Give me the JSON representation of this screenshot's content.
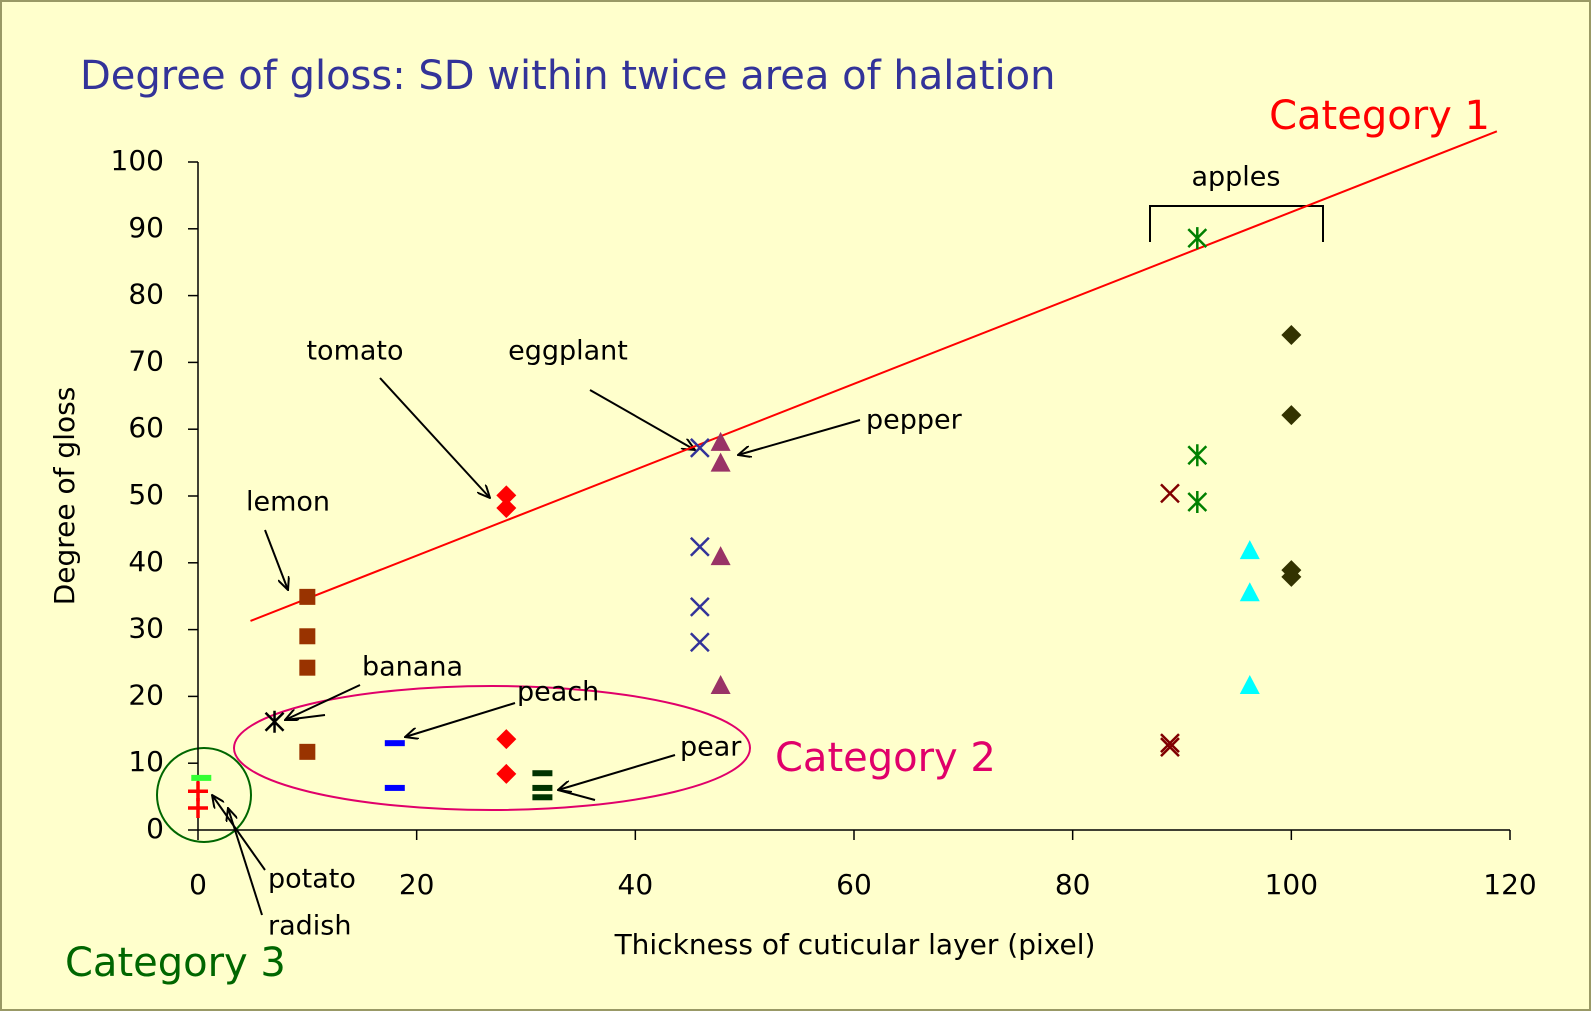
{
  "chart_data": {
    "type": "scatter",
    "subtitle": "Degree of gloss: SD within twice area of halation",
    "x_label": "Thickness of cuticular layer (pixel)",
    "y_label": "Degree of gloss",
    "xlim": [
      0,
      120
    ],
    "xticks": [
      0,
      20,
      40,
      60,
      80,
      100,
      120
    ],
    "ylim": [
      0,
      100
    ],
    "yticks": [
      0,
      10,
      20,
      30,
      40,
      50,
      60,
      70,
      80,
      90,
      100
    ],
    "series": [
      {
        "marker": "square",
        "color": "#993300",
        "x": [
          10,
          10,
          10,
          10
        ],
        "values": [
          34.9,
          29,
          24.3,
          11.7
        ]
      },
      {
        "marker": "asterisk",
        "color": "#000000",
        "x": [
          7
        ],
        "values": [
          16.2
        ]
      },
      {
        "marker": "dash",
        "color": "#0000ff",
        "x": [
          18,
          18
        ],
        "values": [
          13,
          6.3
        ]
      },
      {
        "marker": "diamond",
        "color": "#ff0000",
        "x": [
          28.2,
          28.2,
          28.2,
          28.2
        ],
        "values": [
          50.1,
          48.2,
          13.6,
          8.4
        ]
      },
      {
        "marker": "dash",
        "color": "#003300",
        "x": [
          31.5,
          31.5,
          31.5
        ],
        "values": [
          8.5,
          6.3,
          4.9
        ]
      },
      {
        "marker": "x",
        "color": "#333399",
        "x": [
          45.9,
          45.9,
          45.9,
          45.9
        ],
        "values": [
          57.2,
          42.4,
          33.4,
          28.1
        ]
      },
      {
        "marker": "triangle",
        "color": "#993366",
        "x": [
          47.8,
          47.8,
          47.8,
          47.8
        ],
        "values": [
          58.1,
          55,
          41,
          21.7
        ]
      },
      {
        "marker": "dash",
        "color": "#33ff33",
        "x": [
          0.3
        ],
        "values": [
          7.8
        ]
      },
      {
        "marker": "plus",
        "color": "#ff0000",
        "x": [
          0,
          0
        ],
        "values": [
          5.8,
          3.3
        ]
      },
      {
        "marker": "x",
        "color": "#800000",
        "x": [
          88.9,
          88.9,
          88.9
        ],
        "values": [
          50.4,
          13,
          12.4
        ]
      },
      {
        "marker": "asterisk",
        "color": "#008000",
        "x": [
          91.4,
          91.4,
          91.4
        ],
        "values": [
          88.6,
          56.1,
          49.1
        ]
      },
      {
        "marker": "triangle",
        "color": "#00ffff",
        "x": [
          96.2,
          96.2,
          96.2
        ],
        "values": [
          41.9,
          35.6,
          21.7
        ]
      },
      {
        "marker": "diamond",
        "color": "#333300",
        "x": [
          100,
          100,
          100,
          100
        ],
        "values": [
          74.1,
          62.1,
          38.9,
          37.9
        ]
      }
    ],
    "trend_line": {
      "color": "#ff0000",
      "x": [
        4.8,
        118.8
      ],
      "values": [
        31.3,
        104.6
      ]
    },
    "annotations": [
      "apples",
      "tomato",
      "eggplant",
      "pepper",
      "lemon",
      "banana",
      "peach",
      "pear",
      "potato",
      "radish"
    ],
    "categories_labels": [
      "Category 1",
      "Category 2",
      "Category 3"
    ]
  }
}
